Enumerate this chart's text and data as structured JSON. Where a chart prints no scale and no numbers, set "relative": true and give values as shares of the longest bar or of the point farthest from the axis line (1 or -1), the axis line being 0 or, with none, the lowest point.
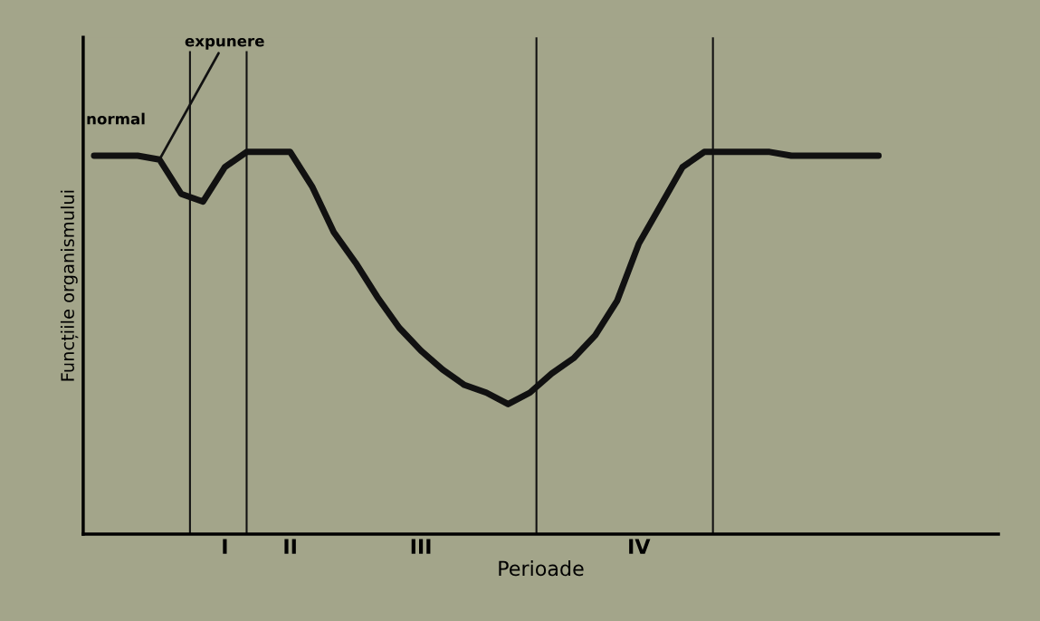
{
  "chart_data": {
    "type": "line",
    "relative": true,
    "xlabel": "Perioade",
    "ylabel": "Funcțiile organismului",
    "categories": [
      null,
      null,
      null,
      null,
      null,
      null,
      "I",
      null,
      null,
      "II",
      null,
      null,
      null,
      null,
      null,
      "III",
      null,
      null,
      null,
      null,
      null,
      null,
      null,
      null,
      null,
      "IV",
      null,
      null,
      null,
      null,
      null,
      null,
      null,
      null,
      null,
      null,
      null,
      null,
      null,
      null,
      null,
      null
    ],
    "series": [
      {
        "color": "#111111",
        "values": [
          0.99,
          0.99,
          0.99,
          0.98,
          0.89,
          0.87,
          0.96,
          1.0,
          1.0,
          1.0,
          0.91,
          0.79,
          0.71,
          0.62,
          0.54,
          0.48,
          0.43,
          0.39,
          0.37,
          0.34,
          0.37,
          0.42,
          0.46,
          0.52,
          0.61,
          0.76,
          0.86,
          0.96,
          1.0,
          1.0,
          1.0,
          1.0,
          0.99,
          0.99,
          0.99,
          0.99,
          0.99,
          null,
          null,
          null,
          null,
          null
        ]
      }
    ],
    "annotations": [
      "normal",
      "expunere"
    ],
    "legend": false,
    "marker": "none",
    "line_style": "solid"
  }
}
